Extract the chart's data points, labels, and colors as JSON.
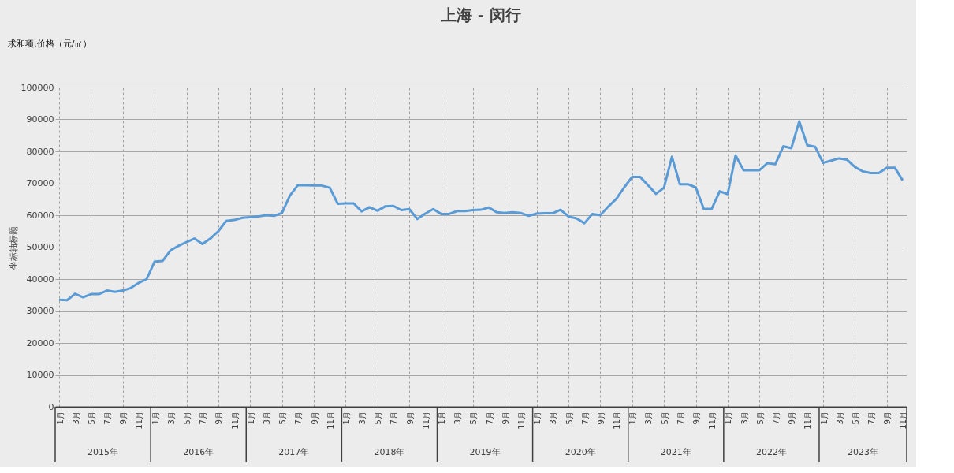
{
  "chart_data": {
    "type": "line",
    "title": "上海 - 闵行",
    "ylabel": "坐标轴标题",
    "annotations": [
      "求和项:价格（元/㎡）",
      "2015年",
      "2016年",
      "2017年",
      "2018年",
      "2019年",
      "2020年",
      "2021年",
      "2022年",
      "2023年"
    ],
    "categories": [
      "1月",
      null,
      "3月",
      null,
      "5月",
      null,
      "7月",
      null,
      "9月",
      null,
      "11月",
      null,
      "1月",
      null,
      "3月",
      null,
      "5月",
      null,
      "7月",
      null,
      "9月",
      null,
      "11月",
      null,
      "1月",
      null,
      "3月",
      null,
      "5月",
      null,
      "7月",
      null,
      "9月",
      null,
      "11月",
      null,
      "1月",
      null,
      "3月",
      null,
      "5月",
      null,
      "7月",
      null,
      "9月",
      null,
      "11月",
      null,
      "1月",
      null,
      "3月",
      null,
      "5月",
      null,
      "7月",
      null,
      "9月",
      null,
      "11月",
      null,
      "1月",
      null,
      "3月",
      null,
      "5月",
      null,
      "7月",
      null,
      "9月",
      null,
      "11月",
      null,
      "1月",
      null,
      "3月",
      null,
      "5月",
      null,
      "7月",
      null,
      "9月",
      null,
      "11月",
      null,
      "1月",
      null,
      "3月",
      null,
      "5月",
      null,
      "7月",
      null,
      "9月",
      null,
      "11月",
      null,
      "1月",
      null,
      "3月",
      null,
      "5月",
      null,
      "7月",
      null,
      "9月",
      null,
      "11月"
    ],
    "series": [
      {
        "color": "#5b9bd5",
        "values": [
          33500,
          33400,
          35400,
          34300,
          35300,
          35300,
          36400,
          36000,
          36400,
          37200,
          38800,
          40000,
          45500,
          45700,
          49000,
          50400,
          51600,
          52700,
          51000,
          52700,
          55000,
          58200,
          58500,
          59200,
          59400,
          59600,
          60000,
          59800,
          60700,
          66200,
          69400,
          69400,
          69300,
          69300,
          68600,
          63600,
          63700,
          63700,
          61200,
          62500,
          61400,
          62800,
          62900,
          61600,
          61900,
          58800,
          60500,
          61900,
          60400,
          60400,
          61300,
          61300,
          61600,
          61700,
          62400,
          60900,
          60700,
          60900,
          60700,
          59800,
          60500,
          60600,
          60600,
          61700,
          59600,
          59000,
          57500,
          60400,
          60000,
          62700,
          65100,
          68700,
          72000,
          72000,
          69400,
          66700,
          68600,
          78300,
          69700,
          69700,
          68700,
          62000,
          62000,
          67500,
          66600,
          78700,
          74100,
          74100,
          74100,
          76300,
          76000,
          81600,
          81000,
          89400,
          81900,
          81400,
          76400,
          77100,
          77800,
          77400,
          75100,
          73700,
          73200,
          73200,
          74900,
          74900,
          70900
        ]
      }
    ],
    "ylim": [
      0,
      100000
    ],
    "yticks": [
      0,
      10000,
      20000,
      30000,
      40000,
      50000,
      60000,
      70000,
      80000,
      90000,
      100000
    ],
    "grid": true,
    "line_style": "solid"
  }
}
